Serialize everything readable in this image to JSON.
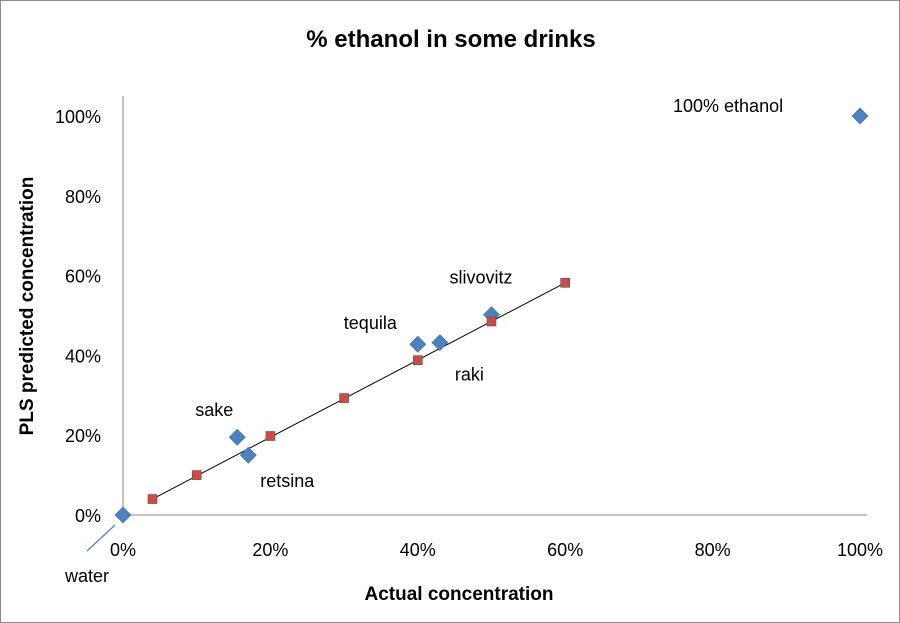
{
  "chart_data": {
    "type": "scatter",
    "title": "% ethanol in some drinks",
    "xlabel": "Actual concentration",
    "ylabel": "PLS predicted concentration",
    "xlim": [
      0,
      100
    ],
    "ylim": [
      0,
      100
    ],
    "x_ticks": [
      "0%",
      "20%",
      "40%",
      "60%",
      "80%",
      "100%"
    ],
    "y_ticks": [
      "0%",
      "20%",
      "40%",
      "60%",
      "80%",
      "100%"
    ],
    "grid": false,
    "legend": "none",
    "series": [
      {
        "color": "#4f81bd",
        "marker": "diamond",
        "points": [
          {
            "x": 0,
            "y": 0,
            "label": "water"
          },
          {
            "x": 15.5,
            "y": 19.5,
            "label": "sake"
          },
          {
            "x": 17,
            "y": 15,
            "label": "retsina"
          },
          {
            "x": 40,
            "y": 42.8,
            "label": "tequila"
          },
          {
            "x": 43,
            "y": 43.2,
            "label": "raki"
          },
          {
            "x": 50,
            "y": 50.2,
            "label": "slivovitz"
          },
          {
            "x": 100,
            "y": 100,
            "label": "100% ethanol"
          }
        ]
      },
      {
        "color": "#c0504d",
        "marker": "square",
        "trendline": true,
        "points": [
          {
            "x": 4,
            "y": 4
          },
          {
            "x": 10,
            "y": 10
          },
          {
            "x": 20,
            "y": 19.8
          },
          {
            "x": 30,
            "y": 29.3
          },
          {
            "x": 40,
            "y": 38.8
          },
          {
            "x": 50,
            "y": 48.5
          },
          {
            "x": 60,
            "y": 58.2
          }
        ]
      }
    ]
  }
}
